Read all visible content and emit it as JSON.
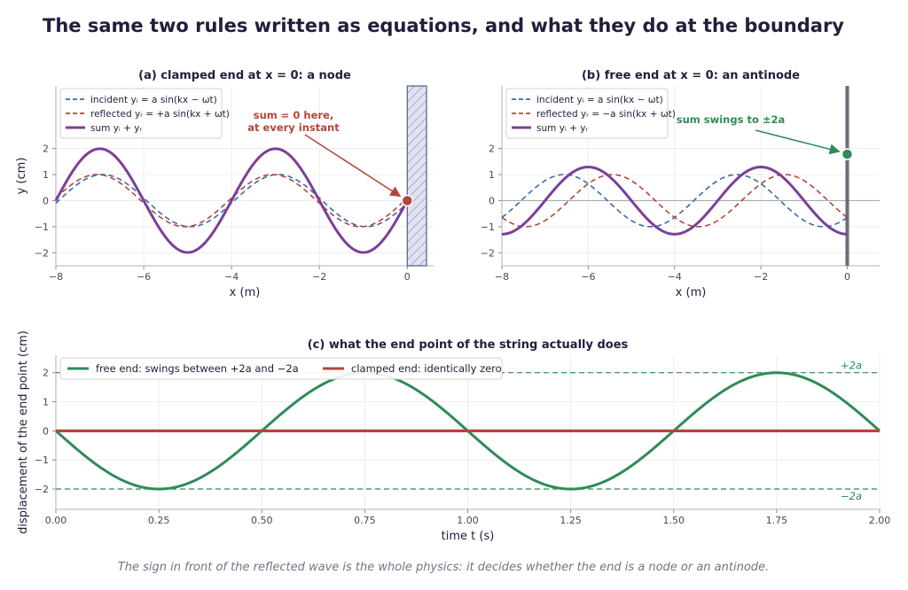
{
  "figure_title": "The same two rules written as equations, and what they do at the boundary",
  "caption": "The sign in front of the reflected wave is the whole physics:  it decides whether the end is a node or an antinode.",
  "colors": {
    "incident": "#3a6aa8",
    "reflected": "#b5443a",
    "sum": "#7b3f98",
    "free_end": "#2e8b57",
    "clamped_end": "#b5443a",
    "wall_hatch": "#7078a8",
    "rod": "#6b6b7a"
  },
  "chart_data": [
    {
      "type": "line",
      "title": "(a)  clamped end at x = 0:  a node",
      "xlabel": "x  (m)",
      "ylabel": "y  (cm)",
      "xlim": [
        -8,
        0.6
      ],
      "ylim": [
        -2.5,
        4.4
      ],
      "xticks": [
        -8,
        -6,
        -4,
        -2,
        0
      ],
      "yticks": [
        -2,
        -1,
        0,
        1,
        2
      ],
      "grid": true,
      "legend_position": "top-left",
      "amplitude_cm": 1,
      "wavelength_m": 4,
      "series": [
        {
          "name": "incident  yᵢ = a sin(kx − ωt)",
          "role": "incident",
          "formula": "sin(kx-wt)",
          "style": "dashed"
        },
        {
          "name": "reflected  yᵣ = +a sin(kx + ωt)",
          "role": "reflected",
          "formula": "+sin(kx+wt)",
          "style": "dashed"
        },
        {
          "name": "sum  yᵢ + yᵣ",
          "role": "sum",
          "formula": "sum",
          "style": "solid"
        }
      ],
      "boundary": "wall",
      "end_point": {
        "x": 0,
        "y": 0
      },
      "annotation": "sum = 0 here,\nat every instant"
    },
    {
      "type": "line",
      "title": "(b)  free end at x = 0:  an antinode",
      "xlabel": "x  (m)",
      "ylabel": "",
      "xlim": [
        -8,
        0.75
      ],
      "ylim": [
        -2.5,
        4.4
      ],
      "xticks": [
        -8,
        -6,
        -4,
        -2,
        0
      ],
      "yticks": [
        -2,
        -1,
        0,
        1,
        2
      ],
      "grid": true,
      "legend_position": "top-left",
      "amplitude_cm": 1,
      "wavelength_m": 4,
      "series": [
        {
          "name": "incident  yᵢ = a sin(kx − ωt)",
          "role": "incident",
          "formula": "sin(kx-wt)",
          "style": "dashed"
        },
        {
          "name": "reflected  yᵣ = −a sin(kx + ωt)",
          "role": "reflected",
          "formula": "-sin(kx+wt)",
          "style": "dashed"
        },
        {
          "name": "sum  yᵢ + yᵣ",
          "role": "sum",
          "formula": "sum",
          "style": "solid"
        }
      ],
      "boundary": "rod",
      "end_point": {
        "x": 0,
        "y": 1.78
      },
      "annotation": "sum swings to  ±2a"
    },
    {
      "type": "line",
      "title": "(c)  what the end point of the string actually does",
      "xlabel": "time  t  (s)",
      "ylabel": "displacement of the end point  (cm)",
      "xlim": [
        0,
        2
      ],
      "ylim": [
        -2.7,
        2.6
      ],
      "xticks": [
        0,
        0.25,
        0.5,
        0.75,
        1.0,
        1.25,
        1.5,
        1.75,
        2.0
      ],
      "xtick_labels": [
        "0.00",
        "0.25",
        "0.50",
        "0.75",
        "1.00",
        "1.25",
        "1.50",
        "1.75",
        "2.00"
      ],
      "yticks": [
        -2,
        -1,
        0,
        1,
        2
      ],
      "grid": true,
      "legend_position": "top-left",
      "period_s": 1,
      "series": [
        {
          "name": "free end:  swings between  +2a  and  −2a",
          "role": "free_end",
          "amplitude": 2,
          "formula": "-2 sin(2πt)"
        },
        {
          "name": "clamped end:  identically zero",
          "role": "clamped_end",
          "amplitude": 0,
          "formula": "0"
        }
      ],
      "reference_lines": [
        {
          "y": 2,
          "label": "+2a"
        },
        {
          "y": -2,
          "label": "−2a"
        }
      ]
    }
  ]
}
